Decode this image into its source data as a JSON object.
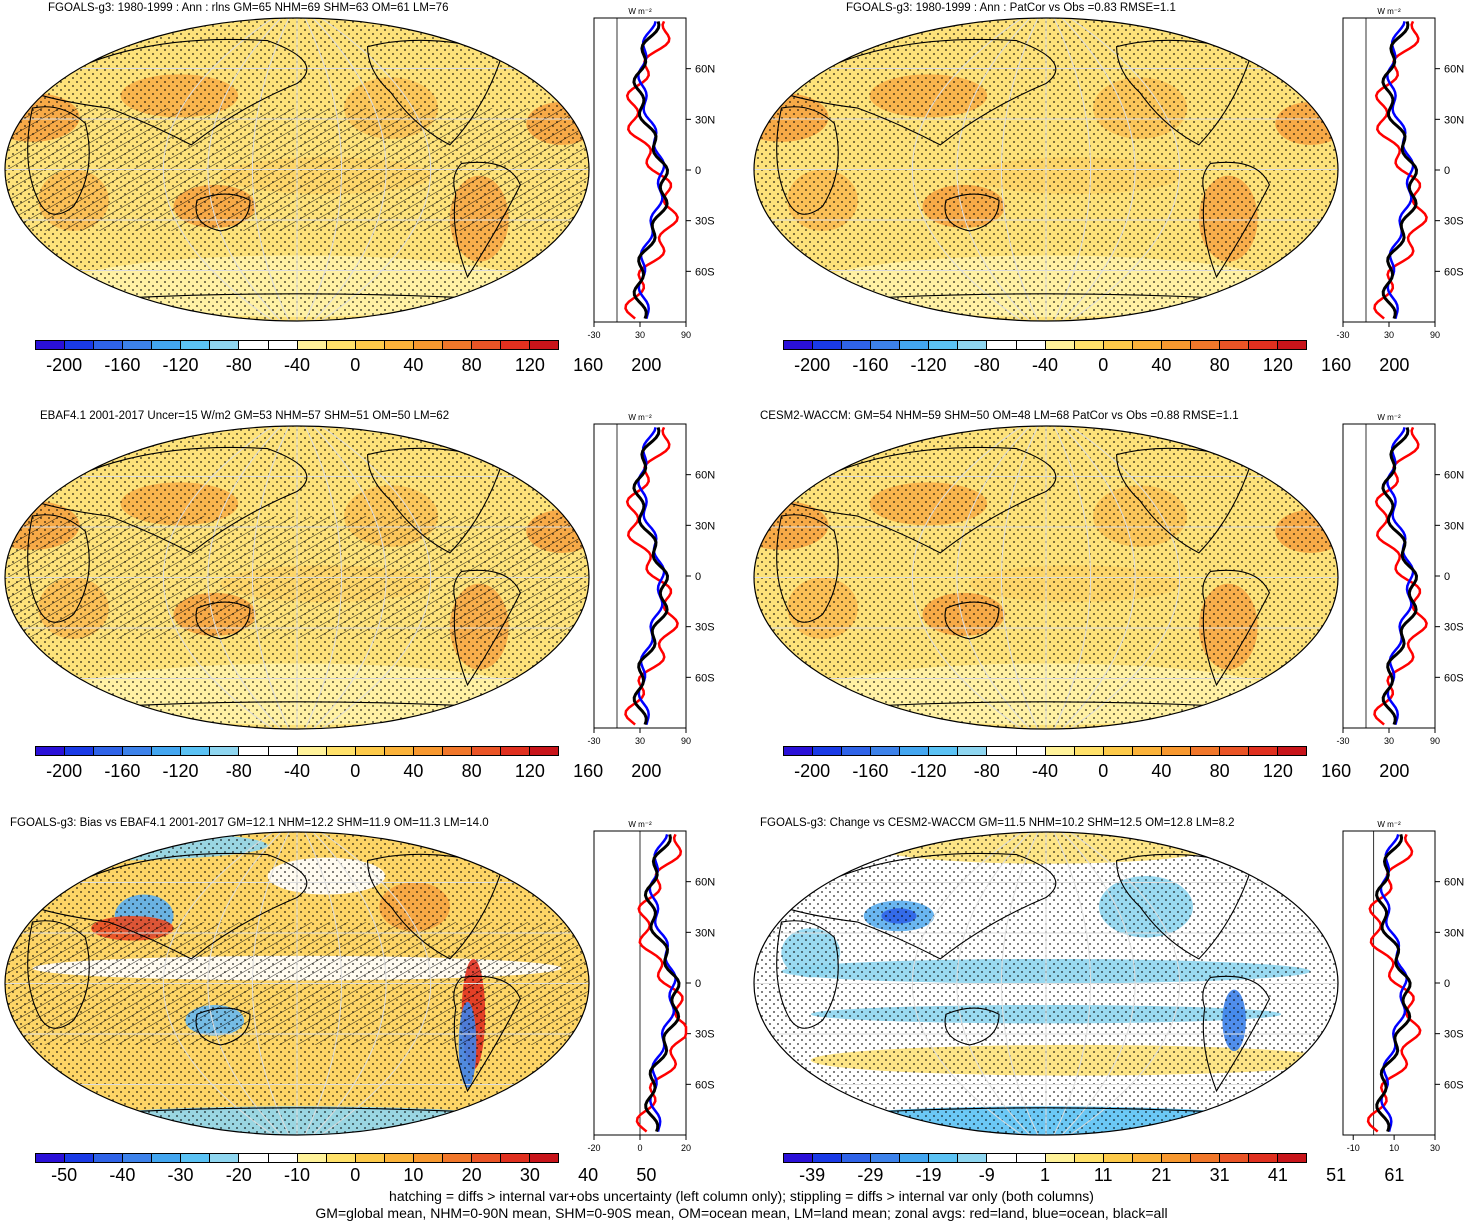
{
  "panels": [
    {
      "title": "FGOALS-g3: 1980-1999 : Ann : rlns GM=65 NHM=69 SHM=63 OM=61 LM=76",
      "field": "mean",
      "hatch": true,
      "colorbar_labels": [
        "-200",
        "-160",
        "-120",
        "-80",
        "-40",
        "0",
        "40",
        "80",
        "120",
        "160",
        "200"
      ],
      "zonal_ticks": [
        "-30",
        "30",
        "90"
      ],
      "zonal_range": [
        -30,
        90
      ],
      "zonal_zero": 0,
      "zonal_center": 45
    },
    {
      "title": "FGOALS-g3: 1980-1999 : Ann : PatCor vs Obs =0.83 RMSE=1.1",
      "field": "mean",
      "hatch": false,
      "colorbar_labels": [
        "-200",
        "-160",
        "-120",
        "-80",
        "-40",
        "0",
        "40",
        "80",
        "120",
        "160",
        "200"
      ],
      "zonal_ticks": [
        "-30",
        "30",
        "90"
      ],
      "zonal_range": [
        -30,
        90
      ],
      "zonal_zero": 0,
      "zonal_center": 45
    },
    {
      "title": "EBAF4.1 2001-2017 Uncer=15 W/m2 GM=53 NHM=57 SHM=51 OM=50 LM=62",
      "field": "mean",
      "hatch": true,
      "colorbar_labels": [
        "-200",
        "-160",
        "-120",
        "-80",
        "-40",
        "0",
        "40",
        "80",
        "120",
        "160",
        "200"
      ],
      "zonal_ticks": [
        "-30",
        "30",
        "90"
      ],
      "zonal_range": [
        -30,
        90
      ],
      "zonal_zero": 0,
      "zonal_center": 45
    },
    {
      "title": "CESM2-WACCM: GM=54 NHM=59 SHM=50 OM=48 LM=68 PatCor vs Obs =0.88 RMSE=1.1",
      "field": "mean",
      "hatch": false,
      "colorbar_labels": [
        "-200",
        "-160",
        "-120",
        "-80",
        "-40",
        "0",
        "40",
        "80",
        "120",
        "160",
        "200"
      ],
      "zonal_ticks": [
        "-30",
        "30",
        "90"
      ],
      "zonal_range": [
        -30,
        90
      ],
      "zonal_zero": 0,
      "zonal_center": 45
    },
    {
      "title": "FGOALS-g3: Bias vs EBAF4.1 2001-2017 GM=12.1 NHM=12.2 SHM=11.9 OM=11.3 LM=14.0",
      "field": "bias",
      "hatch": true,
      "colorbar_labels": [
        "-50",
        "-40",
        "-30",
        "-20",
        "-10",
        "0",
        "10",
        "20",
        "30",
        "40",
        "50"
      ],
      "zonal_ticks": [
        "-20",
        "0",
        "20"
      ],
      "zonal_range": [
        -20,
        20
      ],
      "zonal_zero": 0,
      "zonal_center": 10
    },
    {
      "title": "FGOALS-g3: Change vs CESM2-WACCM GM=11.5 NHM=10.2 SHM=12.5 OM=12.8 LM=8.2",
      "field": "change",
      "hatch": false,
      "colorbar_labels": [
        "-39",
        "-29",
        "-19",
        "-9",
        "1",
        "11",
        "21",
        "31",
        "41",
        "51",
        "61"
      ],
      "zonal_ticks": [
        "-10",
        "10",
        "30"
      ],
      "zonal_range": [
        -15,
        30
      ],
      "zonal_zero": 0,
      "zonal_center": 10
    }
  ],
  "zonal_units": "W m⁻²",
  "lat_labels": [
    "60N",
    "30N",
    "0",
    "30S",
    "60S"
  ],
  "colors": {
    "colorbar": [
      "#2a10d8",
      "#1a3ae6",
      "#2f63e8",
      "#3d82ea",
      "#43a6f0",
      "#5bc2f4",
      "#8fd6f0",
      "#ffffff",
      "#ffffff",
      "#fff29a",
      "#ffe16a",
      "#fdca4a",
      "#fbb33a",
      "#f7982f",
      "#f1772a",
      "#ea5426",
      "#e0301f",
      "#c8141a"
    ],
    "land_line": "#ff0000",
    "ocean_line": "#0000ff",
    "all_line": "#000000"
  },
  "footer": [
    "hatching = diffs > internal var+obs uncertainty (left column only); stippling = diffs > internal var only (both columns)",
    "GM=global mean, NHM=0-90N mean, SHM=0-90S mean, OM=ocean mean, LM=land mean; zonal avgs: red=land, blue=ocean, black=all"
  ]
}
